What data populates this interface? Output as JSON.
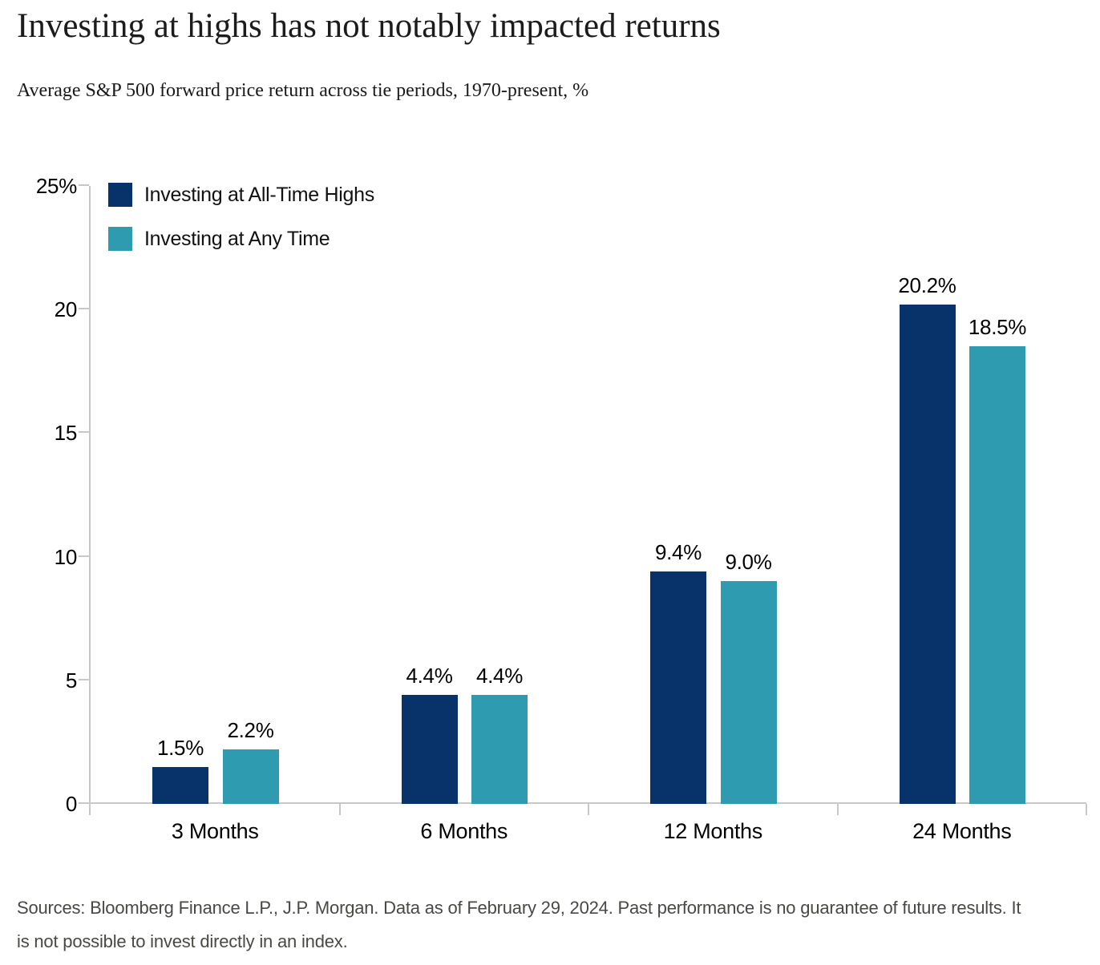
{
  "header": {
    "title": "Investing at highs has not notably impacted returns",
    "subtitle": "Average S&P 500 forward price return across tie periods, 1970-present, %"
  },
  "colors": {
    "series_navy": "#08336a",
    "series_teal": "#2e9bb1",
    "axis_line": "#c8c8c8",
    "label_text": "#000000",
    "title_text": "#1c1c1c",
    "source_text": "#494944"
  },
  "chart_data": {
    "type": "bar",
    "categories": [
      "3 Months",
      "6 Months",
      "12 Months",
      "24 Months"
    ],
    "series": [
      {
        "name": "Investing at All-Time Highs",
        "color_key": "series_navy",
        "values": [
          1.5,
          4.4,
          9.4,
          20.2
        ]
      },
      {
        "name": "Investing at Any Time",
        "color_key": "series_teal",
        "values": [
          2.2,
          4.4,
          9.0,
          18.5
        ]
      }
    ],
    "value_labels": [
      [
        "1.5%",
        "4.4%",
        "9.4%",
        "20.2%"
      ],
      [
        "2.2%",
        "4.4%",
        "9.0%",
        "18.5%"
      ]
    ],
    "y_axis": {
      "min": 0,
      "max": 25,
      "ticks": [
        0,
        5,
        10,
        15,
        20,
        25
      ],
      "tick_labels": [
        "0",
        "5",
        "10",
        "15",
        "20",
        "25%"
      ]
    },
    "legend_position": "top-left",
    "grid": false
  },
  "footer": {
    "source_line_1": "Sources: Bloomberg Finance L.P., J.P. Morgan. Data as of February 29, 2024. Past performance is no guarantee of future results. It",
    "source_line_2": "is not possible to invest directly in an index."
  }
}
